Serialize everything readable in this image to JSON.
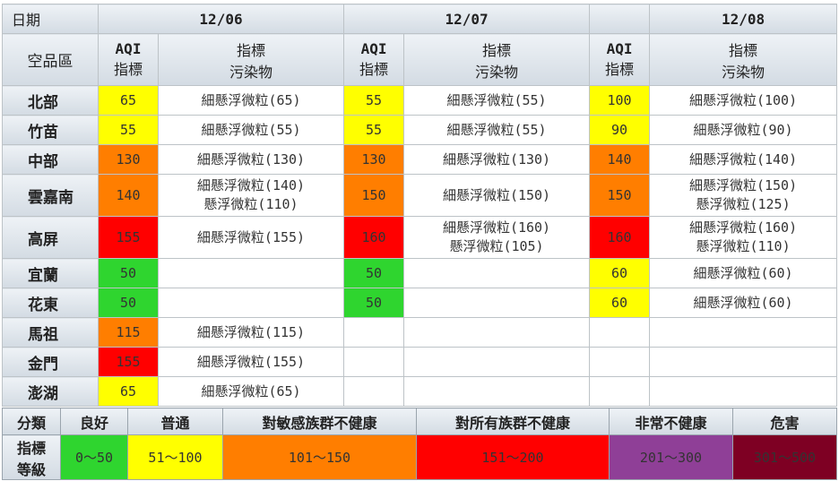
{
  "header": {
    "date_label": "日期",
    "region_label": "空品區",
    "aqi_label_line1": "AQI",
    "aqi_label_line2": "指標",
    "pollutant_label_line1": "指標",
    "pollutant_label_line2": "污染物",
    "dates": [
      "12/06",
      "12/07",
      "12/08"
    ]
  },
  "colors": {
    "good": "#2fd52f",
    "moderate": "#ffff00",
    "unhealthy_sensitive": "#ff7e00",
    "unhealthy": "#ff0000",
    "very_unhealthy": "#8f3f97",
    "hazardous": "#7e0023"
  },
  "rows": [
    {
      "region": "北部",
      "days": [
        {
          "aqi": "65",
          "level": "mod",
          "pollutants": [
            "細懸浮微粒(65)"
          ]
        },
        {
          "aqi": "55",
          "level": "mod",
          "pollutants": [
            "細懸浮微粒(55)"
          ]
        },
        {
          "aqi": "100",
          "level": "mod",
          "pollutants": [
            "細懸浮微粒(100)"
          ]
        }
      ]
    },
    {
      "region": "竹苗",
      "days": [
        {
          "aqi": "55",
          "level": "mod",
          "pollutants": [
            "細懸浮微粒(55)"
          ]
        },
        {
          "aqi": "55",
          "level": "mod",
          "pollutants": [
            "細懸浮微粒(55)"
          ]
        },
        {
          "aqi": "90",
          "level": "mod",
          "pollutants": [
            "細懸浮微粒(90)"
          ]
        }
      ]
    },
    {
      "region": "中部",
      "days": [
        {
          "aqi": "130",
          "level": "usg",
          "pollutants": [
            "細懸浮微粒(130)"
          ]
        },
        {
          "aqi": "130",
          "level": "usg",
          "pollutants": [
            "細懸浮微粒(130)"
          ]
        },
        {
          "aqi": "140",
          "level": "usg",
          "pollutants": [
            "細懸浮微粒(140)"
          ]
        }
      ]
    },
    {
      "region": "雲嘉南",
      "days": [
        {
          "aqi": "140",
          "level": "usg",
          "pollutants": [
            "細懸浮微粒(140)",
            "懸浮微粒(110)"
          ]
        },
        {
          "aqi": "150",
          "level": "usg",
          "pollutants": [
            "細懸浮微粒(150)"
          ]
        },
        {
          "aqi": "150",
          "level": "usg",
          "pollutants": [
            "細懸浮微粒(150)",
            "懸浮微粒(125)"
          ]
        }
      ]
    },
    {
      "region": "高屏",
      "days": [
        {
          "aqi": "155",
          "level": "unh",
          "pollutants": [
            "細懸浮微粒(155)"
          ]
        },
        {
          "aqi": "160",
          "level": "unh",
          "pollutants": [
            "細懸浮微粒(160)",
            "懸浮微粒(105)"
          ]
        },
        {
          "aqi": "160",
          "level": "unh",
          "pollutants": [
            "細懸浮微粒(160)",
            "懸浮微粒(110)"
          ]
        }
      ]
    },
    {
      "region": "宜蘭",
      "days": [
        {
          "aqi": "50",
          "level": "good",
          "pollutants": []
        },
        {
          "aqi": "50",
          "level": "good",
          "pollutants": []
        },
        {
          "aqi": "60",
          "level": "mod",
          "pollutants": [
            "細懸浮微粒(60)"
          ]
        }
      ]
    },
    {
      "region": "花東",
      "days": [
        {
          "aqi": "50",
          "level": "good",
          "pollutants": []
        },
        {
          "aqi": "50",
          "level": "good",
          "pollutants": []
        },
        {
          "aqi": "60",
          "level": "mod",
          "pollutants": [
            "細懸浮微粒(60)"
          ]
        }
      ]
    },
    {
      "region": "馬祖",
      "days": [
        {
          "aqi": "115",
          "level": "usg",
          "pollutants": [
            "細懸浮微粒(115)"
          ]
        },
        {
          "aqi": "",
          "level": "",
          "pollutants": []
        },
        {
          "aqi": "",
          "level": "",
          "pollutants": []
        }
      ]
    },
    {
      "region": "金門",
      "days": [
        {
          "aqi": "155",
          "level": "unh",
          "pollutants": [
            "細懸浮微粒(155)"
          ]
        },
        {
          "aqi": "",
          "level": "",
          "pollutants": []
        },
        {
          "aqi": "",
          "level": "",
          "pollutants": []
        }
      ]
    },
    {
      "region": "澎湖",
      "days": [
        {
          "aqi": "65",
          "level": "mod",
          "pollutants": [
            "細懸浮微粒(65)"
          ]
        },
        {
          "aqi": "",
          "level": "",
          "pollutants": []
        },
        {
          "aqi": "",
          "level": "",
          "pollutants": []
        }
      ]
    }
  ],
  "legend": {
    "category_label": "分類",
    "index_label_line1": "指標",
    "index_label_line2": "等級",
    "levels": [
      {
        "name": "良好",
        "range": "0～50",
        "level": "good"
      },
      {
        "name": "普通",
        "range": "51～100",
        "level": "mod"
      },
      {
        "name": "對敏感族群不健康",
        "range": "101～150",
        "level": "usg"
      },
      {
        "name": "對所有族群不健康",
        "range": "151～200",
        "level": "unh"
      },
      {
        "name": "非常不健康",
        "range": "201～300",
        "level": "vunh"
      },
      {
        "name": "危害",
        "range": "301～500",
        "level": "haz"
      }
    ]
  }
}
